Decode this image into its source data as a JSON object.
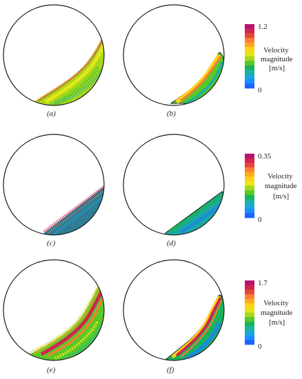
{
  "panels": [
    {
      "caption": "(a)",
      "kind": "particles"
    },
    {
      "caption": "(b)",
      "kind": "continuum"
    },
    {
      "caption": "(c)",
      "kind": "particles"
    },
    {
      "caption": "(d)",
      "kind": "continuum"
    },
    {
      "caption": "(e)",
      "kind": "particles"
    },
    {
      "caption": "(f)",
      "kind": "continuum"
    }
  ],
  "colorbars": [
    {
      "max": "1.2",
      "min": "0",
      "label_line1": "Velocity",
      "label_line2": "magnitude",
      "unit": "[m/s]"
    },
    {
      "max": "0.35",
      "min": "0",
      "label_line1": "Velocity",
      "label_line2": "magnitude",
      "unit": "[m/s]"
    },
    {
      "max": "1.7",
      "min": "0",
      "label_line1": "Velocity",
      "label_line2": "magnitude",
      "unit": "[m/s]"
    }
  ],
  "colormap": [
    "#1a64ff",
    "#1a8cff",
    "#1aa8d8",
    "#1ab49c",
    "#18b45a",
    "#5ac828",
    "#a8d81a",
    "#e6e61a",
    "#ffd21a",
    "#ffa81e",
    "#ff7d32",
    "#e6463c",
    "#d22350",
    "#b4146e"
  ],
  "colors": {
    "outline": "#1a1a1a",
    "bed": "#2f7d94"
  }
}
